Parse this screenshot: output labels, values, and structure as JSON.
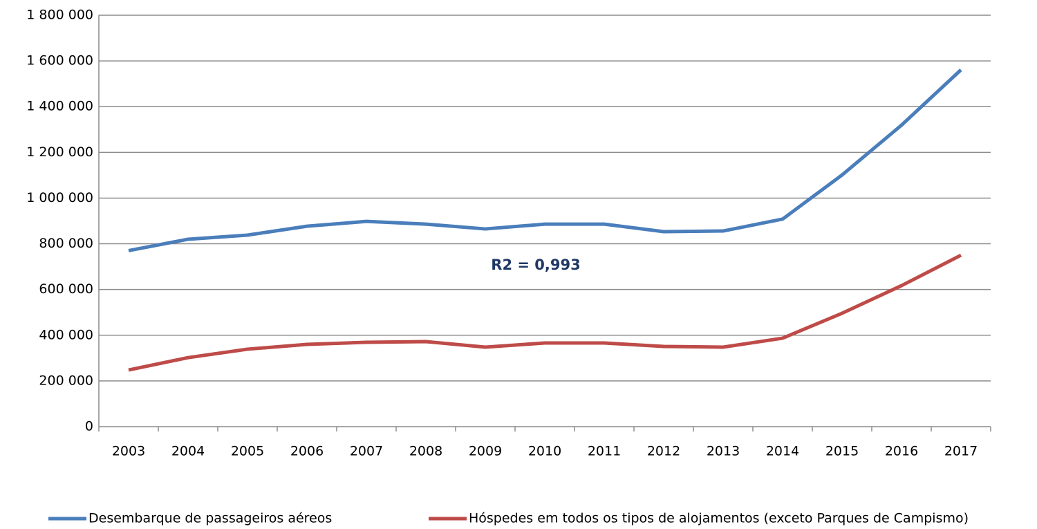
{
  "chart_data": {
    "type": "line",
    "categories": [
      "2003",
      "2004",
      "2005",
      "2006",
      "2007",
      "2008",
      "2009",
      "2010",
      "2011",
      "2012",
      "2013",
      "2014",
      "2015",
      "2016",
      "2017"
    ],
    "series": [
      {
        "name": "Desembarque de passageiros aéreos",
        "color": "#4a7ebb",
        "values": [
          770000,
          820000,
          838000,
          877000,
          898000,
          886000,
          865000,
          886000,
          886000,
          853000,
          856000,
          908000,
          1101000,
          1319000,
          1561000
        ]
      },
      {
        "name": "Hóspedes em todos os tipos de alojamentos (exceto Parques de Campismo)",
        "color": "#be4b48",
        "values": [
          248000,
          302000,
          339000,
          360000,
          369000,
          372000,
          348000,
          366000,
          366000,
          351000,
          348000,
          387000,
          496000,
          617000,
          750000
        ]
      }
    ],
    "ylim": [
      0,
      1800000
    ],
    "yticks": [
      0,
      {
        "value": 200000,
        "label": "200 000"
      },
      {
        "value": 400000,
        "label": "400 000"
      },
      {
        "value": 600000,
        "label": "600 000"
      },
      {
        "value": 800000,
        "label": "800 000"
      },
      {
        "value": 1000000,
        "label": "1 000 000"
      },
      {
        "value": 1200000,
        "label": "1 200 000"
      },
      {
        "value": 1400000,
        "label": "1 400 000"
      },
      {
        "value": 1600000,
        "label": "1 600 000"
      },
      {
        "value": 1800000,
        "label": "1 800 000"
      }
    ],
    "grid": true,
    "legend": "bottom",
    "annotation": "R2 = 0,993"
  }
}
